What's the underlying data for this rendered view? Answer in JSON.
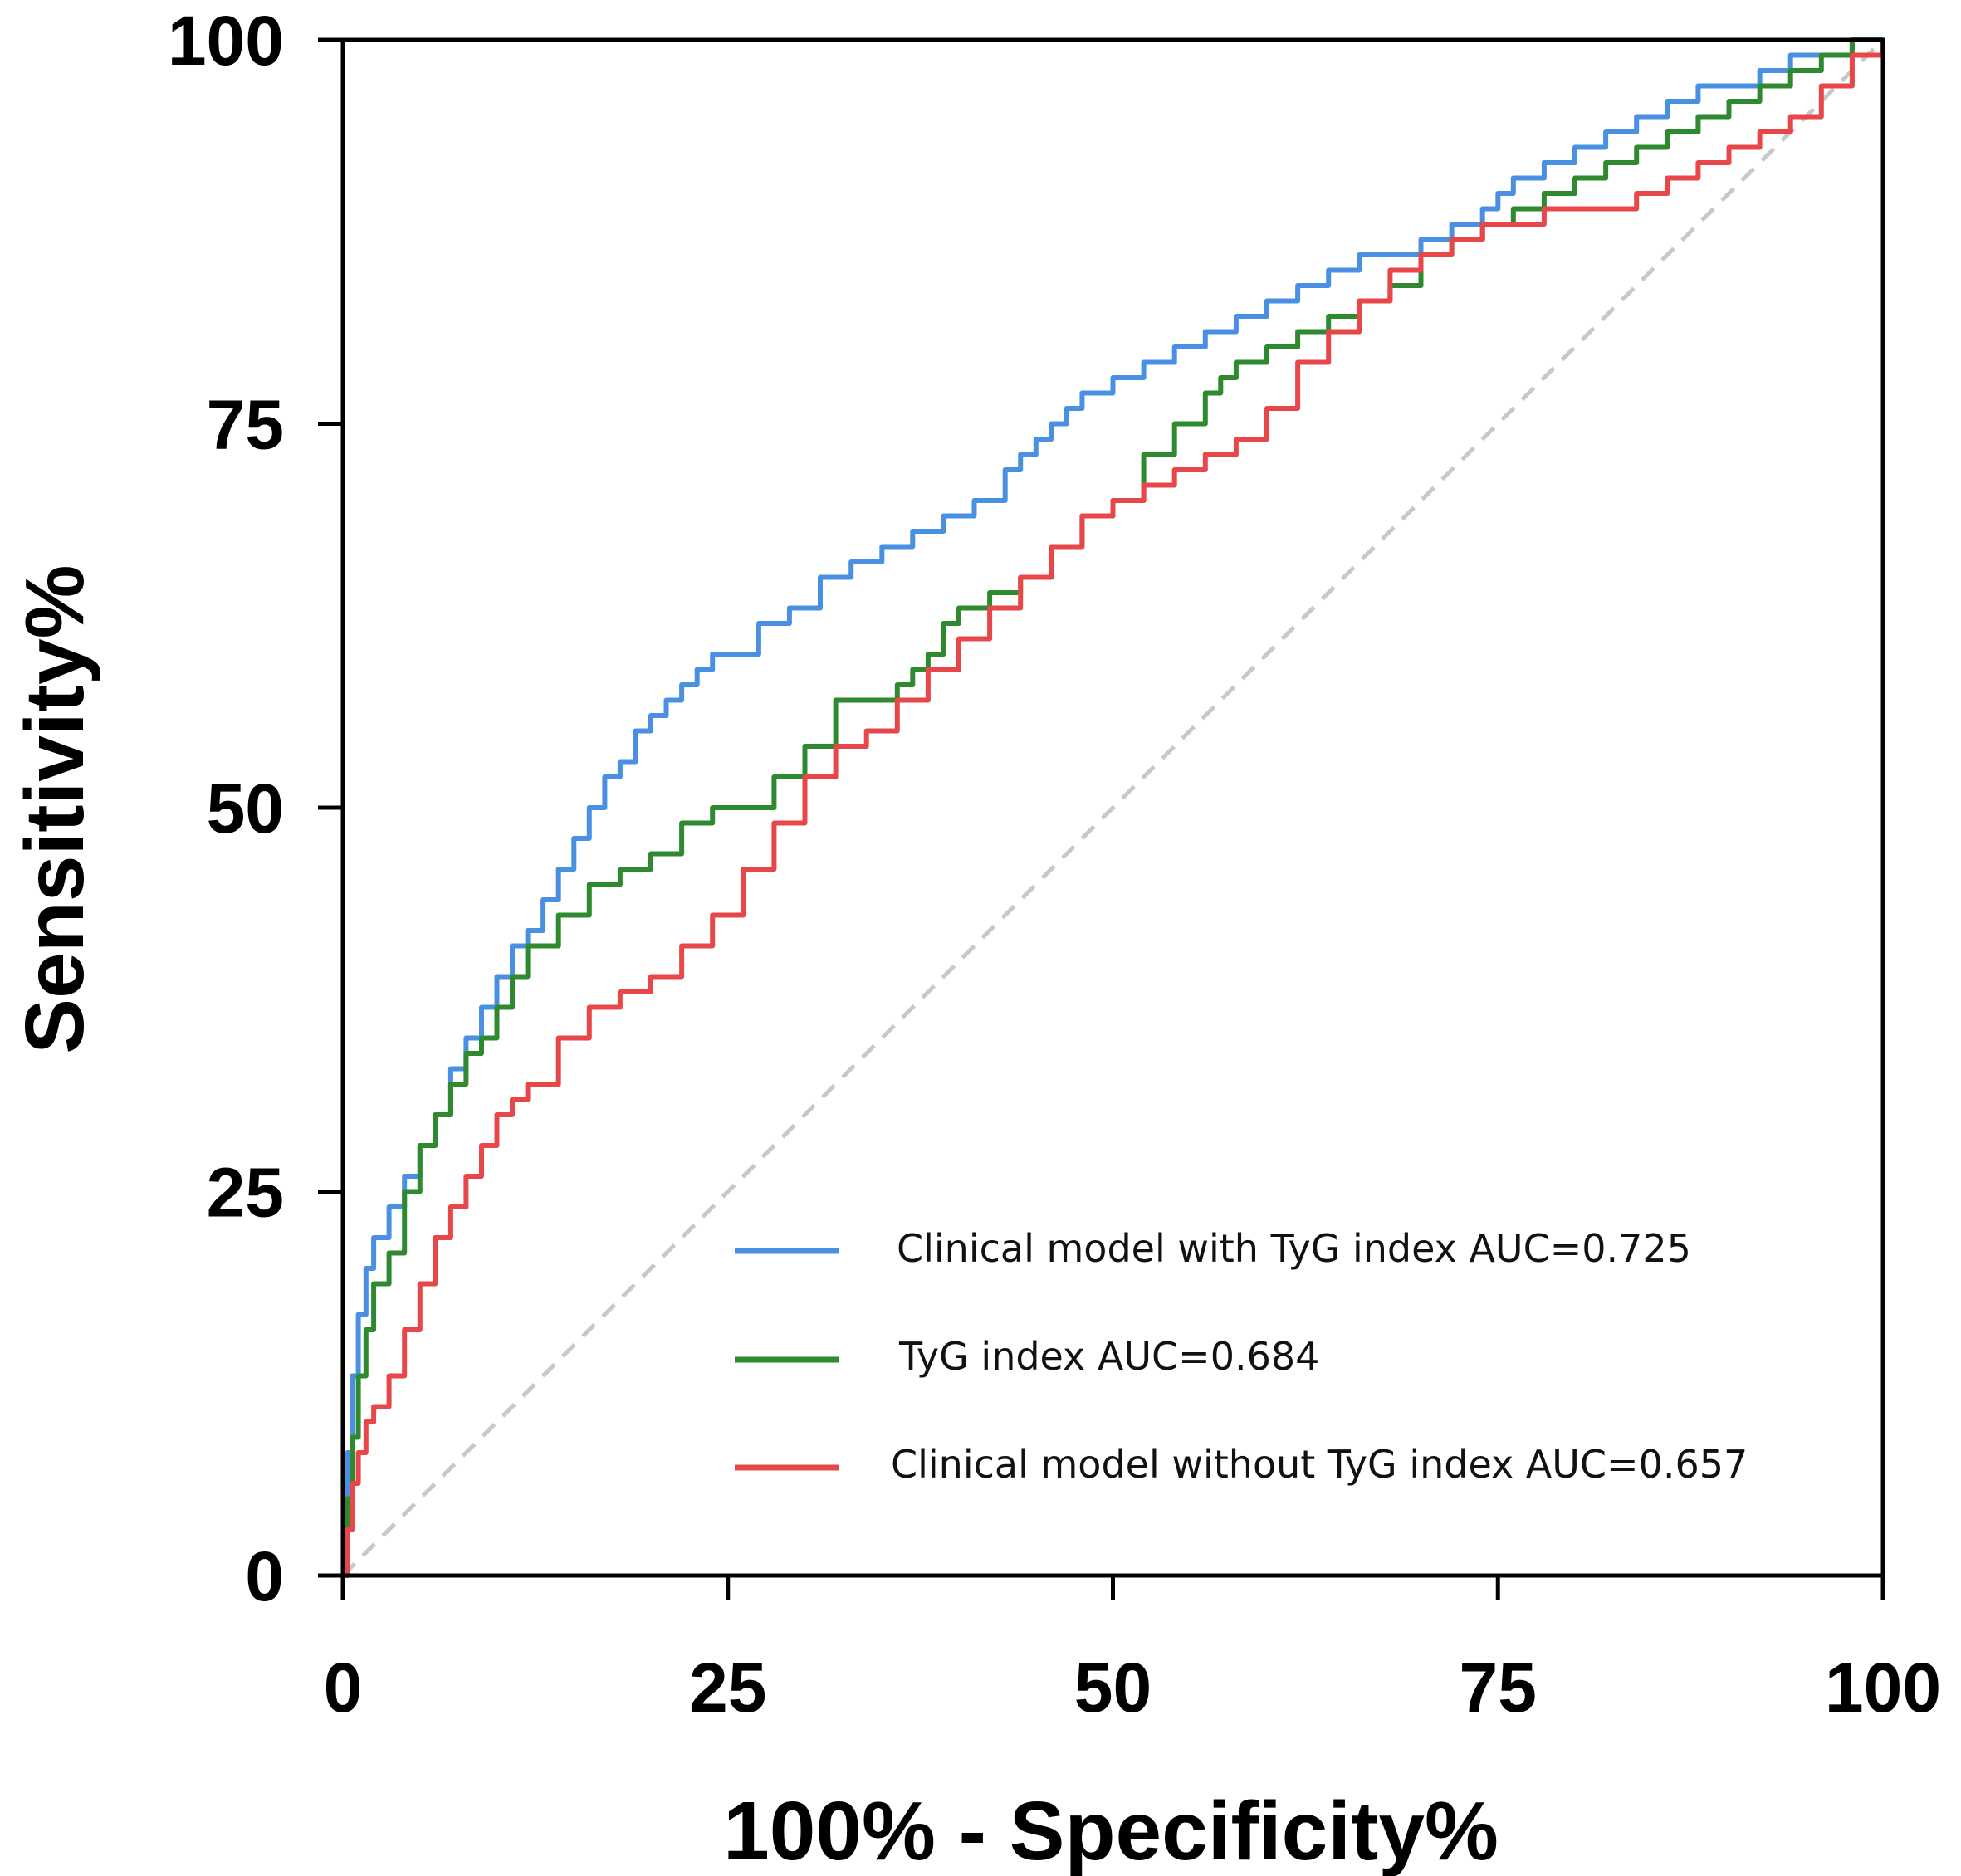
{
  "chart_data": {
    "type": "line",
    "title": "",
    "xlabel": "100% - Specificity%",
    "ylabel": "Sensitivity%",
    "xlim": [
      0,
      100
    ],
    "ylim": [
      0,
      100
    ],
    "x_ticks": [
      0,
      25,
      50,
      75,
      100
    ],
    "y_ticks": [
      0,
      25,
      50,
      75,
      100
    ],
    "x_tick_labels": [
      "0",
      "25",
      "50",
      "75",
      "100"
    ],
    "y_tick_labels": [
      "0",
      "25",
      "50",
      "75",
      "100"
    ],
    "grid": false,
    "legend_position": "bottom-right",
    "reference_line": {
      "name": "chance",
      "color": "#c8c8c8",
      "x": [
        0,
        100
      ],
      "y": [
        0,
        100
      ]
    },
    "series": [
      {
        "name": "Clinical model with TyG index AUC=0.725",
        "color": "#4a90e2",
        "x": [
          0,
          0.3,
          0.6,
          1,
          1.5,
          2,
          3,
          4,
          5,
          6,
          7,
          8,
          9,
          10,
          11,
          12,
          13,
          14,
          15,
          16,
          17,
          18,
          19,
          20,
          21,
          22,
          23,
          24,
          25,
          27,
          29,
          31,
          33,
          35,
          37,
          39,
          41,
          43,
          44,
          45,
          46,
          47,
          48,
          49,
          50,
          52,
          54,
          56,
          58,
          60,
          62,
          64,
          66,
          68,
          70,
          72,
          74,
          75,
          76,
          78,
          80,
          82,
          84,
          86,
          88,
          90,
          92,
          94,
          96,
          98,
          100
        ],
        "y": [
          0,
          8,
          13,
          17,
          20,
          22,
          24,
          26,
          28,
          30,
          33,
          35,
          37,
          39,
          41,
          42,
          44,
          46,
          48,
          50,
          52,
          53,
          55,
          56,
          57,
          58,
          59,
          60,
          60,
          62,
          63,
          65,
          66,
          67,
          68,
          69,
          70,
          72,
          73,
          74,
          75,
          76,
          77,
          77,
          78,
          79,
          80,
          81,
          82,
          83,
          84,
          85,
          86,
          86,
          87,
          88,
          89,
          90,
          91,
          92,
          93,
          94,
          95,
          96,
          97,
          97,
          98,
          99,
          99,
          100,
          100
        ]
      },
      {
        "name": "TyG index AUC=0.684",
        "color": "#2f8a2f",
        "x": [
          0,
          0.3,
          0.6,
          1,
          1.5,
          2,
          3,
          4,
          5,
          6,
          7,
          8,
          9,
          10,
          11,
          12,
          14,
          16,
          18,
          20,
          22,
          23,
          24,
          26,
          28,
          30,
          32,
          34,
          36,
          37,
          38,
          39,
          40,
          42,
          44,
          46,
          48,
          50,
          52,
          54,
          56,
          57,
          58,
          60,
          62,
          64,
          66,
          68,
          70,
          72,
          74,
          76,
          78,
          80,
          82,
          84,
          86,
          88,
          90,
          92,
          94,
          96,
          98,
          100
        ],
        "y": [
          0,
          5,
          9,
          13,
          16,
          19,
          21,
          25,
          28,
          30,
          32,
          34,
          35,
          37,
          39,
          41,
          43,
          45,
          46,
          47,
          49,
          49,
          50,
          50,
          52,
          54,
          57,
          57,
          58,
          59,
          60,
          62,
          63,
          64,
          65,
          67,
          69,
          70,
          73,
          75,
          77,
          78,
          79,
          80,
          81,
          82,
          83,
          84,
          86,
          87,
          88,
          89,
          90,
          91,
          92,
          93,
          94,
          95,
          96,
          97,
          98,
          99,
          100,
          100
        ]
      },
      {
        "name": "Clinical model without TyG index AUC=0.657",
        "color": "#e8474a",
        "x": [
          0,
          0.3,
          0.6,
          1,
          1.5,
          2,
          3,
          4,
          5,
          6,
          7,
          8,
          9,
          10,
          11,
          12,
          14,
          16,
          18,
          20,
          22,
          24,
          26,
          28,
          30,
          32,
          34,
          36,
          38,
          40,
          42,
          44,
          46,
          48,
          50,
          52,
          54,
          56,
          58,
          60,
          62,
          64,
          66,
          68,
          70,
          72,
          74,
          76,
          78,
          80,
          82,
          84,
          86,
          88,
          90,
          92,
          94,
          96,
          98,
          100
        ],
        "y": [
          0,
          3,
          6,
          8,
          10,
          11,
          13,
          16,
          19,
          22,
          24,
          26,
          28,
          30,
          31,
          32,
          35,
          37,
          38,
          39,
          41,
          43,
          46,
          49,
          52,
          54,
          55,
          57,
          59,
          61,
          63,
          65,
          67,
          69,
          70,
          71,
          72,
          73,
          74,
          76,
          79,
          81,
          83,
          85,
          86,
          87,
          88,
          88,
          89,
          89,
          89,
          90,
          91,
          92,
          93,
          94,
          95,
          97,
          99,
          100
        ]
      }
    ]
  }
}
